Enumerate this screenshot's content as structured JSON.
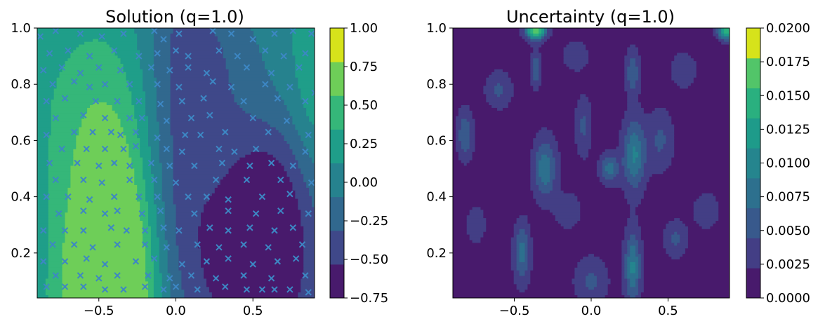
{
  "chart_data": [
    {
      "type": "contour",
      "title": "Solution (q=1.0)",
      "xlabel": "",
      "ylabel": "",
      "xlim": [
        -0.9,
        0.9
      ],
      "ylim": [
        0.04,
        1.0
      ],
      "xticks": [
        "−0.5",
        "0.0",
        "0.5"
      ],
      "xtick_values": [
        -0.5,
        0.0,
        0.5
      ],
      "yticks": [
        "0.2",
        "0.4",
        "0.6",
        "0.8",
        "1.0"
      ],
      "ytick_values": [
        0.2,
        0.4,
        0.6,
        0.8,
        1.0
      ],
      "colorbar": {
        "levels": [
          -0.75,
          -0.5,
          -0.25,
          0.0,
          0.25,
          0.5,
          0.75,
          1.0
        ],
        "tick_labels": [
          "−0.75",
          "−0.50",
          "−0.25",
          "0.00",
          "0.25",
          "0.50",
          "0.75",
          "1.00"
        ],
        "colors": [
          "#481a6c",
          "#3f4889",
          "#31688e",
          "#26828e",
          "#1f9e89",
          "#35b779",
          "#6ece58",
          "#d6e31b"
        ]
      },
      "field": "solution",
      "marker_color": "#3d87c4",
      "collocation_points": [
        [
          -0.88,
          0.97
        ],
        [
          -0.78,
          0.99
        ],
        [
          -0.62,
          0.98
        ],
        [
          -0.48,
          0.97
        ],
        [
          -0.34,
          0.98
        ],
        [
          -0.14,
          0.99
        ],
        [
          -0.08,
          0.96
        ],
        [
          0.02,
          0.98
        ],
        [
          0.24,
          0.99
        ],
        [
          0.36,
          0.98
        ],
        [
          0.5,
          0.96
        ],
        [
          0.64,
          0.98
        ],
        [
          0.76,
          0.99
        ],
        [
          0.88,
          0.98
        ],
        [
          -0.82,
          0.91
        ],
        [
          -0.7,
          0.92
        ],
        [
          -0.56,
          0.9
        ],
        [
          -0.4,
          0.92
        ],
        [
          -0.24,
          0.9
        ],
        [
          -0.12,
          0.91
        ],
        [
          0.0,
          0.92
        ],
        [
          0.08,
          0.9
        ],
        [
          0.28,
          0.92
        ],
        [
          0.4,
          0.9
        ],
        [
          0.58,
          0.92
        ],
        [
          0.7,
          0.9
        ],
        [
          0.84,
          0.91
        ],
        [
          -0.86,
          0.85
        ],
        [
          -0.74,
          0.86
        ],
        [
          -0.62,
          0.84
        ],
        [
          -0.5,
          0.86
        ],
        [
          -0.36,
          0.85
        ],
        [
          -0.16,
          0.86
        ],
        [
          -0.04,
          0.85
        ],
        [
          0.08,
          0.86
        ],
        [
          0.2,
          0.84
        ],
        [
          0.46,
          0.86
        ],
        [
          0.62,
          0.84
        ],
        [
          0.8,
          0.86
        ],
        [
          -0.8,
          0.8
        ],
        [
          -0.66,
          0.81
        ],
        [
          -0.56,
          0.79
        ],
        [
          -0.46,
          0.8
        ],
        [
          -0.3,
          0.8
        ],
        [
          -0.12,
          0.8
        ],
        [
          0.02,
          0.79
        ],
        [
          0.24,
          0.81
        ],
        [
          0.36,
          0.79
        ],
        [
          0.58,
          0.8
        ],
        [
          0.74,
          0.79
        ],
        [
          0.9,
          0.77
        ],
        [
          -0.84,
          0.74
        ],
        [
          -0.72,
          0.75
        ],
        [
          -0.52,
          0.74
        ],
        [
          -0.38,
          0.74
        ],
        [
          -0.24,
          0.74
        ],
        [
          -0.1,
          0.73
        ],
        [
          0.04,
          0.74
        ],
        [
          0.18,
          0.75
        ],
        [
          0.44,
          0.74
        ],
        [
          0.66,
          0.75
        ],
        [
          0.84,
          0.74
        ],
        [
          -0.78,
          0.68
        ],
        [
          -0.6,
          0.69
        ],
        [
          -0.46,
          0.68
        ],
        [
          -0.3,
          0.68
        ],
        [
          -0.22,
          0.68
        ],
        [
          -0.06,
          0.67
        ],
        [
          0.1,
          0.68
        ],
        [
          0.22,
          0.69
        ],
        [
          0.5,
          0.68
        ],
        [
          0.72,
          0.67
        ],
        [
          -0.84,
          0.62
        ],
        [
          -0.66,
          0.63
        ],
        [
          -0.54,
          0.63
        ],
        [
          -0.42,
          0.63
        ],
        [
          -0.36,
          0.62
        ],
        [
          -0.26,
          0.63
        ],
        [
          -0.12,
          0.61
        ],
        [
          0.06,
          0.62
        ],
        [
          0.16,
          0.62
        ],
        [
          0.32,
          0.63
        ],
        [
          0.6,
          0.63
        ],
        [
          0.86,
          0.62
        ],
        [
          -0.74,
          0.57
        ],
        [
          -0.58,
          0.57
        ],
        [
          -0.46,
          0.57
        ],
        [
          -0.34,
          0.57
        ],
        [
          -0.26,
          0.58
        ],
        [
          -0.06,
          0.57
        ],
        [
          0.04,
          0.56
        ],
        [
          0.28,
          0.57
        ],
        [
          0.38,
          0.56
        ],
        [
          0.52,
          0.57
        ],
        [
          0.84,
          0.56
        ],
        [
          -0.82,
          0.52
        ],
        [
          -0.64,
          0.52
        ],
        [
          -0.5,
          0.51
        ],
        [
          -0.4,
          0.52
        ],
        [
          -0.3,
          0.51
        ],
        [
          -0.16,
          0.52
        ],
        [
          -0.04,
          0.51
        ],
        [
          0.12,
          0.51
        ],
        [
          0.3,
          0.52
        ],
        [
          0.48,
          0.51
        ],
        [
          0.62,
          0.52
        ],
        [
          0.76,
          0.51
        ],
        [
          -0.78,
          0.46
        ],
        [
          -0.6,
          0.46
        ],
        [
          -0.48,
          0.45
        ],
        [
          -0.3,
          0.46
        ],
        [
          -0.14,
          0.46
        ],
        [
          0.0,
          0.45
        ],
        [
          0.26,
          0.46
        ],
        [
          0.46,
          0.46
        ],
        [
          0.68,
          0.46
        ],
        [
          0.88,
          0.45
        ],
        [
          -0.84,
          0.4
        ],
        [
          -0.7,
          0.4
        ],
        [
          -0.56,
          0.39
        ],
        [
          -0.4,
          0.4
        ],
        [
          -0.24,
          0.4
        ],
        [
          -0.12,
          0.4
        ],
        [
          0.08,
          0.4
        ],
        [
          0.2,
          0.4
        ],
        [
          0.34,
          0.39
        ],
        [
          0.56,
          0.4
        ],
        [
          0.74,
          0.41
        ],
        [
          -0.76,
          0.34
        ],
        [
          -0.6,
          0.35
        ],
        [
          -0.46,
          0.34
        ],
        [
          -0.38,
          0.35
        ],
        [
          -0.22,
          0.34
        ],
        [
          -0.1,
          0.35
        ],
        [
          0.12,
          0.34
        ],
        [
          0.34,
          0.35
        ],
        [
          0.52,
          0.34
        ],
        [
          0.68,
          0.35
        ],
        [
          0.86,
          0.34
        ],
        [
          -0.86,
          0.28
        ],
        [
          -0.72,
          0.28
        ],
        [
          -0.6,
          0.28
        ],
        [
          -0.42,
          0.29
        ],
        [
          -0.32,
          0.28
        ],
        [
          -0.2,
          0.28
        ],
        [
          -0.08,
          0.29
        ],
        [
          0.02,
          0.28
        ],
        [
          0.22,
          0.29
        ],
        [
          0.34,
          0.28
        ],
        [
          0.48,
          0.29
        ],
        [
          0.64,
          0.28
        ],
        [
          0.76,
          0.29
        ],
        [
          -0.8,
          0.23
        ],
        [
          -0.66,
          0.23
        ],
        [
          -0.54,
          0.22
        ],
        [
          -0.38,
          0.23
        ],
        [
          -0.2,
          0.23
        ],
        [
          -0.06,
          0.22
        ],
        [
          0.14,
          0.23
        ],
        [
          0.28,
          0.22
        ],
        [
          0.44,
          0.23
        ],
        [
          0.6,
          0.22
        ],
        [
          0.82,
          0.23
        ],
        [
          -0.86,
          0.17
        ],
        [
          -0.72,
          0.17
        ],
        [
          -0.58,
          0.18
        ],
        [
          -0.46,
          0.16
        ],
        [
          -0.26,
          0.17
        ],
        [
          -0.14,
          0.18
        ],
        [
          0.04,
          0.16
        ],
        [
          0.2,
          0.17
        ],
        [
          0.34,
          0.18
        ],
        [
          0.5,
          0.16
        ],
        [
          0.66,
          0.17
        ],
        [
          0.78,
          0.18
        ],
        [
          -0.78,
          0.12
        ],
        [
          -0.62,
          0.12
        ],
        [
          -0.5,
          0.11
        ],
        [
          -0.38,
          0.12
        ],
        [
          -0.18,
          0.12
        ],
        [
          -0.04,
          0.11
        ],
        [
          0.1,
          0.12
        ],
        [
          0.26,
          0.11
        ],
        [
          0.44,
          0.12
        ],
        [
          0.62,
          0.11
        ],
        [
          0.84,
          0.12
        ],
        [
          -0.84,
          0.08
        ],
        [
          -0.72,
          0.08
        ],
        [
          -0.6,
          0.08
        ],
        [
          -0.46,
          0.07
        ],
        [
          -0.34,
          0.07
        ],
        [
          -0.2,
          0.08
        ],
        [
          -0.08,
          0.07
        ],
        [
          0.0,
          0.08
        ],
        [
          0.14,
          0.07
        ],
        [
          0.32,
          0.08
        ],
        [
          0.46,
          0.07
        ],
        [
          0.56,
          0.07
        ],
        [
          0.64,
          0.07
        ],
        [
          0.74,
          0.07
        ],
        [
          0.86,
          0.06
        ]
      ]
    },
    {
      "type": "contour",
      "title": "Uncertainty (q=1.0)",
      "xlabel": "",
      "ylabel": "",
      "xlim": [
        -0.9,
        0.9
      ],
      "ylim": [
        0.04,
        1.0
      ],
      "xticks": [
        "−0.5",
        "0.0",
        "0.5"
      ],
      "xtick_values": [
        -0.5,
        0.0,
        0.5
      ],
      "yticks": [
        "0.2",
        "0.4",
        "0.6",
        "0.8",
        "1.0"
      ],
      "ytick_values": [
        0.2,
        0.4,
        0.6,
        0.8,
        1.0
      ],
      "colorbar": {
        "levels": [
          0.0,
          0.0025,
          0.005,
          0.0075,
          0.01,
          0.0125,
          0.015,
          0.0175,
          0.02
        ],
        "tick_labels": [
          "0.0000",
          "0.0025",
          "0.0050",
          "0.0075",
          "0.0100",
          "0.0125",
          "0.0150",
          "0.0175",
          "0.0200"
        ],
        "colors": [
          "#481a6c",
          "#433e85",
          "#38598c",
          "#2d708e",
          "#25858e",
          "#1e9b8a",
          "#2ab07f",
          "#52c569",
          "#d6e31b"
        ]
      },
      "field": "uncertainty"
    }
  ]
}
